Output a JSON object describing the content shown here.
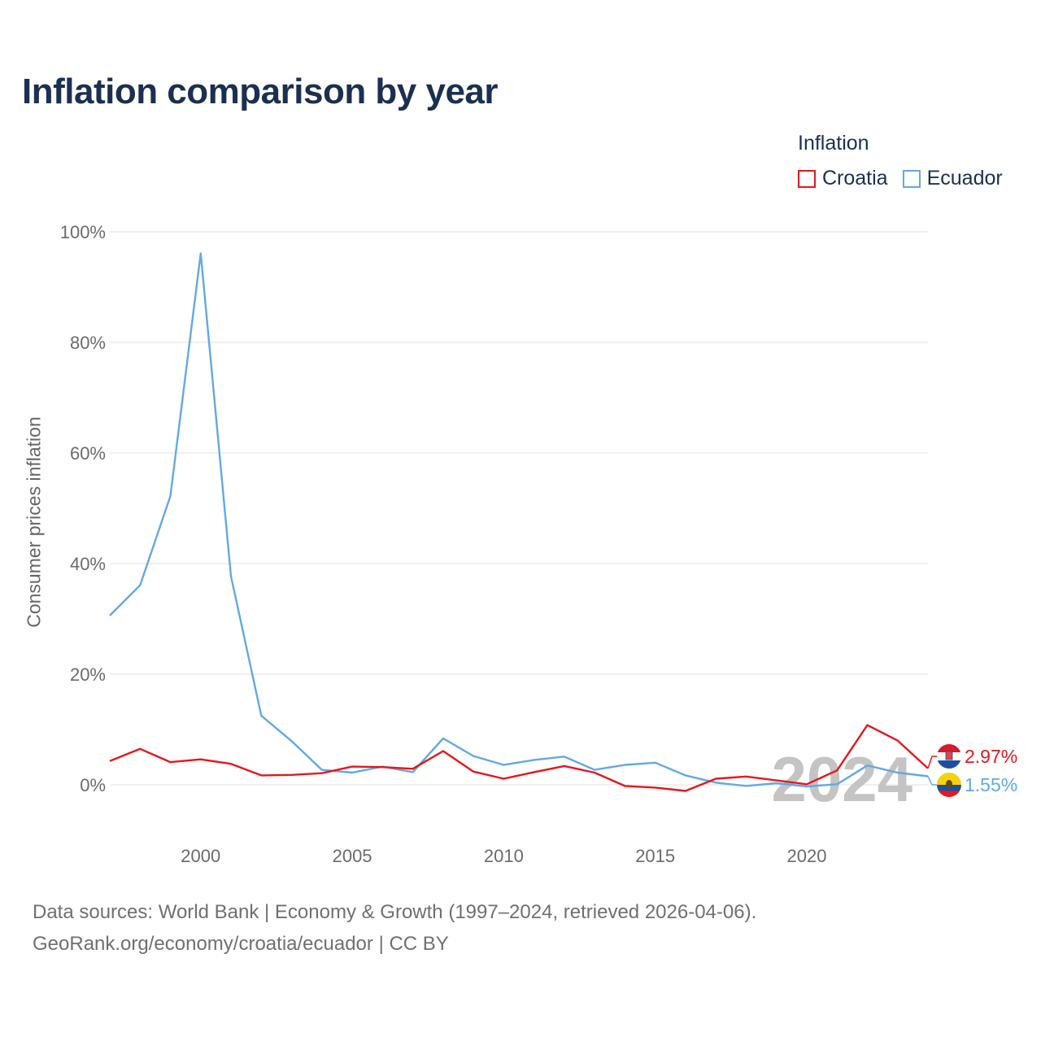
{
  "title": "Inflation comparison by year",
  "legend_title": "Inflation",
  "footer": {
    "line1": "Data sources: World Bank | Economy & Growth (1997–2024, retrieved 2026-04-06).",
    "line2": "GeoRank.org/economy/croatia/ecuador | CC BY"
  },
  "colors": {
    "croatia": "#e8161c",
    "ecuador": "#62a9e4"
  },
  "chart_data": {
    "type": "line",
    "title": "Inflation comparison by year",
    "xlabel": "",
    "ylabel": "Consumer prices inflation",
    "xlim": [
      1997,
      2024
    ],
    "ylim": [
      -8,
      100
    ],
    "x_ticks": [
      2000,
      2005,
      2010,
      2015,
      2020
    ],
    "y_ticks": [
      0,
      20,
      40,
      60,
      80,
      100
    ],
    "y_tick_labels": [
      "0%",
      "20%",
      "40%",
      "60%",
      "80%",
      "100%"
    ],
    "highlight_year": "2024",
    "x": [
      1997,
      1998,
      1999,
      2000,
      2001,
      2002,
      2003,
      2004,
      2005,
      2006,
      2007,
      2008,
      2009,
      2010,
      2011,
      2012,
      2013,
      2014,
      2015,
      2016,
      2017,
      2018,
      2019,
      2020,
      2021,
      2022,
      2023,
      2024
    ],
    "series": [
      {
        "name": "Croatia",
        "color": "#e8161c",
        "end_label": "2.97%",
        "values": [
          4.3,
          6.5,
          4.1,
          4.6,
          3.8,
          1.7,
          1.8,
          2.1,
          3.3,
          3.2,
          2.9,
          6.1,
          2.4,
          1.1,
          2.3,
          3.4,
          2.2,
          -0.2,
          -0.5,
          -1.1,
          1.1,
          1.5,
          0.8,
          0.1,
          2.6,
          10.8,
          8.0,
          2.97
        ]
      },
      {
        "name": "Ecuador",
        "color": "#62a9e4",
        "end_label": "1.55%",
        "values": [
          30.6,
          36.1,
          52.2,
          96.1,
          37.7,
          12.5,
          7.9,
          2.7,
          2.2,
          3.3,
          2.3,
          8.4,
          5.2,
          3.6,
          4.5,
          5.1,
          2.7,
          3.6,
          4.0,
          1.7,
          0.4,
          -0.2,
          0.3,
          -0.3,
          0.1,
          3.5,
          2.2,
          1.55
        ]
      }
    ]
  }
}
